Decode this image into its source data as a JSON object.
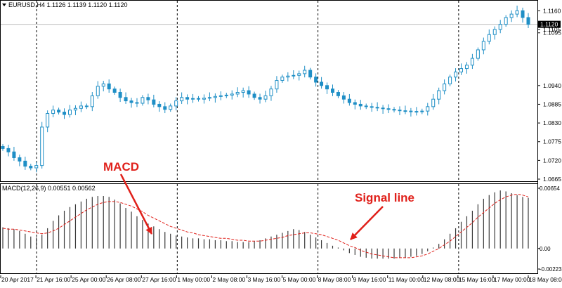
{
  "header": {
    "symbol_info": "EURUSD,H4  1.1126 1.1139 1.1120 1.1120",
    "macd_info": "MACD(12,26,9) 0.00551 0.00562"
  },
  "colors": {
    "candle": "#1f8fc6",
    "histogram": "#3a3a3a",
    "signal": "#e0201a",
    "annotation": "#e0201a",
    "frame": "#000000",
    "price_tag_bg": "#000000",
    "price_tag_text": "#ffffff"
  },
  "annotations": {
    "macd_label": "MACD",
    "signal_label": "Signal line"
  },
  "chart_data": [
    {
      "type": "candlestick",
      "title": "EURUSD,H4",
      "price_axis": {
        "ticks": [
          "1.1160",
          "1.1105",
          "1.1095",
          "1.0940",
          "1.0885",
          "1.0830",
          "1.0775",
          "1.0720",
          "1.0665"
        ],
        "current_price": "1.1120",
        "ylim": [
          1.0665,
          1.1175
        ]
      },
      "grid": "vertical dashed at day boundaries",
      "closes": [
        1.0755,
        1.0745,
        1.0728,
        1.0718,
        1.0703,
        1.0698,
        1.0705,
        1.0818,
        1.0858,
        1.0868,
        1.0862,
        1.0855,
        1.0868,
        1.0873,
        1.088,
        1.0878,
        1.091,
        1.0938,
        1.0945,
        1.093,
        1.092,
        1.0905,
        1.0895,
        1.089,
        1.0888,
        1.0905,
        1.0898,
        1.0885,
        1.0878,
        1.087,
        1.088,
        1.0895,
        1.0905,
        1.09,
        1.0902,
        1.09,
        1.0903,
        1.0905,
        1.0908,
        1.091,
        1.0912,
        1.0915,
        1.092,
        1.0925,
        1.0915,
        1.0905,
        1.09,
        1.091,
        1.093,
        1.0955,
        1.0965,
        1.0968,
        1.097,
        1.0975,
        1.0985,
        1.0965,
        1.095,
        1.094,
        1.093,
        1.092,
        1.091,
        1.09,
        1.089,
        1.0885,
        1.088,
        1.0878,
        1.0876,
        1.0874,
        1.0872,
        1.087,
        1.0868,
        1.0866,
        1.0865,
        1.0864,
        1.0863,
        1.0865,
        1.0878,
        1.09,
        1.0925,
        1.0945,
        1.0965,
        1.098,
        1.099,
        1.1,
        1.102,
        1.1045,
        1.107,
        1.109,
        1.1105,
        1.112,
        1.114,
        1.115,
        1.116,
        1.114,
        1.112
      ]
    },
    {
      "type": "histogram+line",
      "title": "MACD(12,26,9)",
      "series": [
        {
          "name": "MACD",
          "values": [
            0.0023,
            0.0022,
            0.0021,
            0.0019,
            0.0016,
            0.0013,
            0.0012,
            0.0015,
            0.0022,
            0.003,
            0.0036,
            0.0041,
            0.0045,
            0.0048,
            0.0051,
            0.0054,
            0.0056,
            0.0057,
            0.0057,
            0.0056,
            0.0053,
            0.0049,
            0.0044,
            0.004,
            0.0035,
            0.0031,
            0.0027,
            0.0024,
            0.0021,
            0.0018,
            0.0016,
            0.0014,
            0.0013,
            0.0012,
            0.0011,
            0.0011,
            0.001,
            0.001,
            0.0009,
            0.0009,
            0.0008,
            0.0008,
            0.0007,
            0.0007,
            0.0007,
            0.0008,
            0.0009,
            0.0011,
            0.0013,
            0.0015,
            0.0017,
            0.0019,
            0.0021,
            0.002,
            0.0018,
            0.0015,
            0.0012,
            0.0009,
            0.0006,
            0.0003,
            0.0001,
            -0.0002,
            -0.0005,
            -0.0007,
            -0.0009,
            -0.001,
            -0.0011,
            -0.0011,
            -0.0011,
            -0.0011,
            -0.0011,
            -0.001,
            -0.001,
            -0.0009,
            -0.0008,
            -0.0006,
            -0.0003,
            0.0001,
            0.0005,
            0.001,
            0.0016,
            0.0022,
            0.0029,
            0.0035,
            0.0041,
            0.0048,
            0.0054,
            0.0058,
            0.0061,
            0.0063,
            0.0062,
            0.006,
            0.0058,
            0.0056,
            0.0055
          ]
        },
        {
          "name": "Signal line",
          "values": [
            0.0022,
            0.0021,
            0.0021,
            0.002,
            0.0019,
            0.0018,
            0.0017,
            0.0016,
            0.0017,
            0.0019,
            0.0022,
            0.0026,
            0.003,
            0.0034,
            0.0038,
            0.0042,
            0.0045,
            0.0048,
            0.005,
            0.0051,
            0.0051,
            0.005,
            0.0048,
            0.0046,
            0.0043,
            0.004,
            0.0036,
            0.0033,
            0.003,
            0.0027,
            0.0024,
            0.0022,
            0.002,
            0.0018,
            0.0017,
            0.0015,
            0.0014,
            0.0013,
            0.0012,
            0.0011,
            0.0011,
            0.001,
            0.0009,
            0.0009,
            0.0008,
            0.0008,
            0.0008,
            0.0009,
            0.001,
            0.0011,
            0.0012,
            0.0014,
            0.0015,
            0.0016,
            0.0017,
            0.0017,
            0.0016,
            0.0015,
            0.0013,
            0.0011,
            0.0009,
            0.0006,
            0.0003,
            0.0001,
            -0.0002,
            -0.0004,
            -0.0006,
            -0.0007,
            -0.0008,
            -0.0009,
            -0.001,
            -0.001,
            -0.001,
            -0.001,
            -0.0009,
            -0.0008,
            -0.0006,
            -0.0003,
            0.0,
            0.0004,
            0.0008,
            0.0013,
            0.0018,
            0.0023,
            0.0028,
            0.0034,
            0.0039,
            0.0044,
            0.0049,
            0.0053,
            0.0056,
            0.0058,
            0.0059,
            0.0058,
            0.0056
          ]
        }
      ],
      "ticks": [
        "0.00654",
        "0.00",
        "-0.00223"
      ],
      "ylim": [
        -0.00223,
        0.00654
      ]
    }
  ],
  "time_axis": {
    "labels": [
      "20 Apr 2017",
      "21 Apr 16:00",
      "25 Apr 00:00",
      "26 Apr 08:00",
      "27 Apr 16:00",
      "1 May 00:00",
      "2 May 08:00",
      "3 May 16:00",
      "5 May 00:00",
      "8 May 08:00",
      "9 May 16:00",
      "11 May 00:00",
      "12 May 08:00",
      "15 May 16:00",
      "17 May 00:00",
      "18 May 08:00"
    ]
  }
}
